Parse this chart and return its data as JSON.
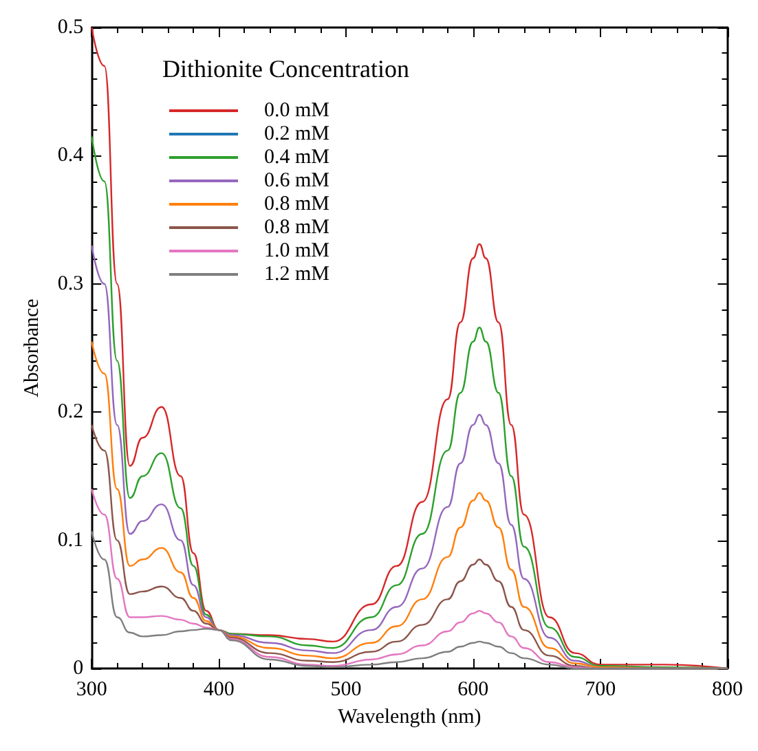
{
  "chart_data": {
    "type": "line",
    "xlabel": "Wavelength (nm)",
    "ylabel": "Absorbance",
    "legend_title": "Dithionite Concentration",
    "legend": "top left",
    "grid": false,
    "marker": "none",
    "line_style": "solid",
    "x": [
      300,
      310,
      320,
      330,
      340,
      355,
      370,
      380,
      390,
      400,
      410,
      440,
      470,
      490,
      520,
      540,
      560,
      580,
      590,
      600,
      605,
      610,
      620,
      630,
      640,
      660,
      680,
      700,
      750,
      800
    ],
    "xlim": [
      300,
      800
    ],
    "xticks": [
      300,
      400,
      500,
      600,
      700,
      800
    ],
    "ylim": [
      0,
      0.5
    ],
    "yticks": [
      0,
      0.1,
      0.2,
      0.3,
      0.4,
      0.5
    ],
    "series": [
      {
        "name": "0.0 mM",
        "color": "#d62728",
        "values": [
          0.5,
          0.47,
          0.3,
          0.158,
          0.18,
          0.204,
          0.15,
          0.09,
          0.045,
          0.03,
          0.027,
          0.026,
          0.023,
          0.021,
          0.05,
          0.08,
          0.13,
          0.21,
          0.27,
          0.32,
          0.331,
          0.32,
          0.27,
          0.19,
          0.12,
          0.04,
          0.012,
          0.003,
          0.003,
          0
        ]
      },
      {
        "name": "0.2 mM",
        "color": "#1f77b4",
        "values": [
          null,
          null,
          null,
          null,
          null,
          null,
          null,
          null,
          null,
          null,
          null,
          null,
          null,
          null,
          null,
          null,
          null,
          null,
          null,
          null,
          null,
          null,
          null,
          null,
          null,
          null,
          null,
          null,
          null,
          null
        ]
      },
      {
        "name": "0.4 mM",
        "color": "#2ca02c",
        "values": [
          0.415,
          0.38,
          0.24,
          0.133,
          0.15,
          0.168,
          0.125,
          0.08,
          0.042,
          0.03,
          0.027,
          0.025,
          0.018,
          0.016,
          0.04,
          0.065,
          0.105,
          0.17,
          0.215,
          0.255,
          0.266,
          0.255,
          0.215,
          0.15,
          0.095,
          0.032,
          0.009,
          0.002,
          0.001,
          0
        ]
      },
      {
        "name": "0.6 mM",
        "color": "#9467bd",
        "values": [
          0.33,
          0.3,
          0.19,
          0.105,
          0.115,
          0.128,
          0.1,
          0.065,
          0.04,
          0.03,
          0.026,
          0.02,
          0.014,
          0.012,
          0.03,
          0.048,
          0.078,
          0.126,
          0.16,
          0.19,
          0.198,
          0.19,
          0.16,
          0.112,
          0.07,
          0.024,
          0.006,
          0.001,
          0,
          0
        ]
      },
      {
        "name": "0.8 mM",
        "color": "#ff7f0e",
        "values": [
          0.255,
          0.23,
          0.14,
          0.08,
          0.085,
          0.094,
          0.075,
          0.055,
          0.037,
          0.03,
          0.025,
          0.016,
          0.01,
          0.008,
          0.02,
          0.033,
          0.054,
          0.087,
          0.11,
          0.131,
          0.137,
          0.131,
          0.11,
          0.077,
          0.048,
          0.016,
          0.004,
          0.001,
          0,
          0
        ]
      },
      {
        "name": "0.8 mM",
        "color": "#8c564b",
        "values": [
          0.19,
          0.17,
          0.1,
          0.058,
          0.06,
          0.064,
          0.055,
          0.045,
          0.035,
          0.03,
          0.024,
          0.012,
          0.006,
          0.005,
          0.013,
          0.021,
          0.034,
          0.054,
          0.068,
          0.081,
          0.085,
          0.081,
          0.068,
          0.048,
          0.03,
          0.01,
          0.002,
          0,
          0,
          0
        ]
      },
      {
        "name": "1.0 mM",
        "color": "#e377c2",
        "values": [
          0.14,
          0.12,
          0.07,
          0.04,
          0.04,
          0.041,
          0.038,
          0.035,
          0.032,
          0.03,
          0.023,
          0.009,
          0.003,
          0.002,
          0.007,
          0.011,
          0.018,
          0.029,
          0.036,
          0.043,
          0.045,
          0.043,
          0.036,
          0.025,
          0.016,
          0.005,
          0.001,
          0,
          0,
          0
        ]
      },
      {
        "name": "1.2 mM",
        "color": "#7f7f7f",
        "values": [
          0.107,
          0.085,
          0.04,
          0.028,
          0.025,
          0.026,
          0.029,
          0.03,
          0.031,
          0.03,
          0.022,
          0.007,
          0.002,
          0.001,
          0.003,
          0.005,
          0.008,
          0.013,
          0.017,
          0.02,
          0.021,
          0.02,
          0.017,
          0.012,
          0.008,
          0.003,
          0,
          0,
          0,
          0
        ]
      }
    ]
  }
}
